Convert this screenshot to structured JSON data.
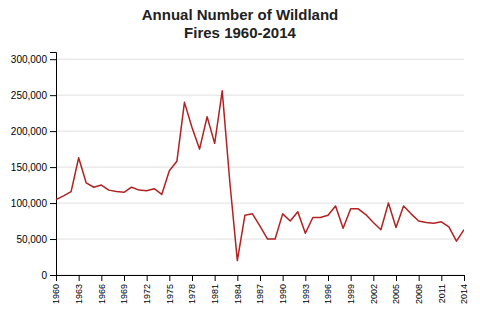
{
  "chart_data": {
    "type": "line",
    "title": "Annual Number of Wildland\nFires 1960-2014",
    "x": [
      1960,
      1961,
      1962,
      1963,
      1964,
      1965,
      1966,
      1967,
      1968,
      1969,
      1970,
      1971,
      1972,
      1973,
      1974,
      1975,
      1976,
      1977,
      1978,
      1979,
      1980,
      1981,
      1982,
      1983,
      1984,
      1985,
      1986,
      1987,
      1988,
      1989,
      1990,
      1991,
      1992,
      1993,
      1994,
      1995,
      1996,
      1997,
      1998,
      1999,
      2000,
      2001,
      2002,
      2003,
      2004,
      2005,
      2006,
      2007,
      2008,
      2009,
      2010,
      2011,
      2012,
      2013,
      2014
    ],
    "values": [
      105000,
      110000,
      116000,
      163000,
      128000,
      122000,
      125000,
      118000,
      116000,
      115000,
      122000,
      118000,
      117000,
      120000,
      112000,
      145000,
      158000,
      240000,
      205000,
      175000,
      220000,
      183000,
      256000,
      130000,
      20000,
      83000,
      85000,
      68000,
      50000,
      50000,
      85000,
      75000,
      88000,
      58000,
      80000,
      80000,
      83000,
      96000,
      65000,
      92000,
      92000,
      84000,
      73000,
      63000,
      100000,
      66000,
      96000,
      85000,
      75000,
      73000,
      72000,
      74000,
      67000,
      47000,
      63000
    ],
    "color": "#b22222",
    "xlim": [
      1960,
      2014
    ],
    "xticks": [
      1960,
      1963,
      1966,
      1969,
      1972,
      1975,
      1978,
      1981,
      1984,
      1987,
      1990,
      1993,
      1996,
      1999,
      2002,
      2005,
      2008,
      2011,
      2014
    ],
    "ylim": [
      0,
      310000
    ],
    "yticks": [
      0,
      {
        "value": 50000,
        "label": "50,000"
      },
      {
        "value": 100000,
        "label": "100,000"
      },
      {
        "value": 150000,
        "label": "150,000"
      },
      {
        "value": 200000,
        "label": "200,000"
      },
      {
        "value": 250000,
        "label": "250,000"
      },
      {
        "value": 300000,
        "label": "300,000"
      }
    ],
    "grid": true
  }
}
